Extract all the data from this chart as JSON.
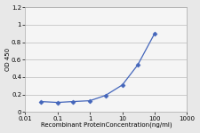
{
  "x": [
    0.03,
    0.1,
    0.3,
    1,
    3,
    10,
    30,
    100
  ],
  "y": [
    0.12,
    0.11,
    0.12,
    0.13,
    0.19,
    0.31,
    0.54,
    0.9
  ],
  "line_color": "#4466bb",
  "marker": "D",
  "marker_color": "#4466bb",
  "marker_size": 2.5,
  "xlabel": "Recombinant ProteinConcentration(ng/ml)",
  "ylabel": "OD 450",
  "xlim": [
    0.01,
    1000
  ],
  "ylim": [
    0,
    1.2
  ],
  "yticks": [
    0,
    0.2,
    0.4,
    0.6,
    0.8,
    1.0,
    1.2
  ],
  "xtick_labels": [
    "0.01",
    "0.1",
    "1",
    "10",
    "100",
    "1000"
  ],
  "xtick_vals": [
    0.01,
    0.1,
    1,
    10,
    100,
    1000
  ],
  "background_color": "#e8e8e8",
  "plot_bg_color": "#f5f5f5",
  "label_fontsize": 5,
  "tick_fontsize": 5,
  "linewidth": 0.9
}
